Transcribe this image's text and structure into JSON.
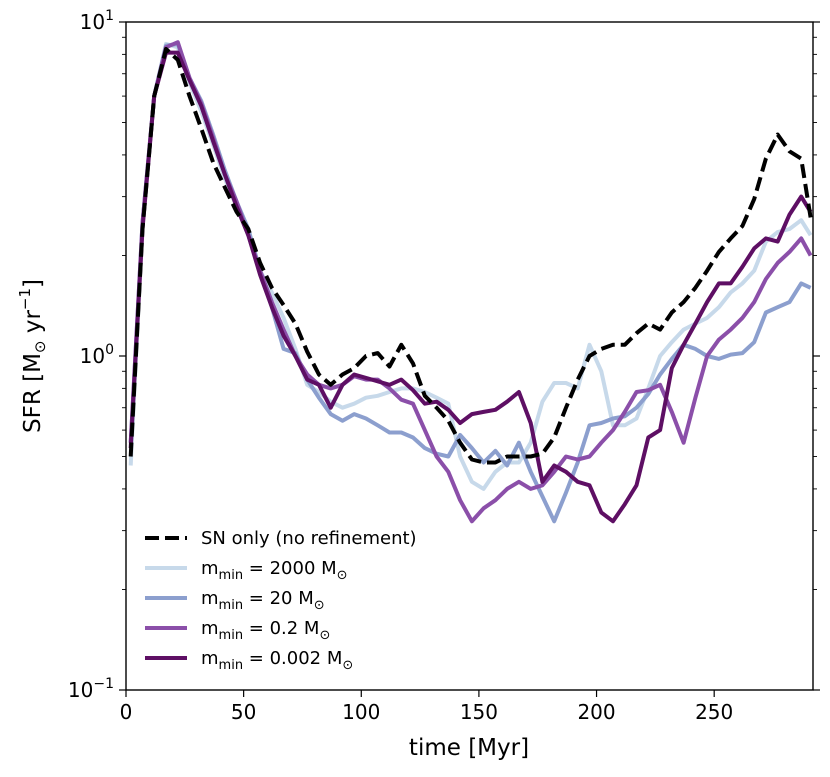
{
  "chart_data": {
    "type": "line",
    "title": "",
    "xlabel": "time [Myr]",
    "ylabel_main": "SFR [M",
    "ylabel_sub": "⊙",
    "ylabel_rest": " yr",
    "ylabel_sup": "−1",
    "ylabel_close": "]",
    "yscale": "log",
    "xlim": [
      0,
      292
    ],
    "ylim": [
      0.1,
      10
    ],
    "x_ticks": [
      0,
      50,
      100,
      150,
      200,
      250
    ],
    "x_tick_labels": [
      "0",
      "50",
      "100",
      "150",
      "200",
      "250"
    ],
    "y_tick_labels": [
      {
        "value": 10,
        "base": "10",
        "exp": "1"
      },
      {
        "value": 1,
        "base": "10",
        "exp": "0"
      },
      {
        "value": 0.1,
        "base": "10",
        "exp": "−1"
      }
    ],
    "legend_position": "lower-left",
    "series": [
      {
        "name": "SN only (no refinement)",
        "label_parts": {
          "main": "SN only (no refinement)",
          "sub": "",
          "rest": "",
          "sub2": ""
        },
        "color": "#000000",
        "dashed": true,
        "x": [
          2,
          7,
          12,
          17,
          22,
          27,
          32,
          37,
          42,
          47,
          52,
          57,
          62,
          67,
          72,
          77,
          82,
          87,
          92,
          97,
          102,
          107,
          112,
          117,
          122,
          127,
          132,
          137,
          142,
          147,
          152,
          157,
          162,
          167,
          172,
          177,
          182,
          187,
          192,
          197,
          202,
          207,
          212,
          217,
          222,
          227,
          232,
          237,
          242,
          247,
          252,
          257,
          262,
          267,
          272,
          277,
          282,
          287,
          291
        ],
        "y": [
          0.5,
          2.4,
          6.0,
          8.3,
          7.7,
          6.0,
          4.8,
          3.8,
          3.2,
          2.7,
          2.4,
          1.9,
          1.6,
          1.42,
          1.25,
          1.03,
          0.88,
          0.82,
          0.88,
          0.92,
          1.0,
          1.02,
          0.93,
          1.08,
          0.95,
          0.76,
          0.7,
          0.64,
          0.55,
          0.49,
          0.48,
          0.48,
          0.5,
          0.5,
          0.5,
          0.51,
          0.57,
          0.7,
          0.85,
          1.0,
          1.05,
          1.08,
          1.08,
          1.17,
          1.25,
          1.2,
          1.35,
          1.45,
          1.6,
          1.8,
          2.05,
          2.25,
          2.45,
          2.95,
          3.9,
          4.6,
          4.1,
          3.9,
          2.6
        ]
      },
      {
        "name": "m_min = 2000 M⊙",
        "label_parts": {
          "main": "m",
          "sub": "min",
          "rest": " = 2000 M",
          "sub2": "⊙"
        },
        "color": "#c7d9ea",
        "dashed": false,
        "x": [
          2,
          7,
          12,
          17,
          22,
          27,
          32,
          37,
          42,
          47,
          52,
          57,
          62,
          67,
          72,
          77,
          82,
          87,
          92,
          97,
          102,
          107,
          112,
          117,
          122,
          127,
          132,
          137,
          142,
          147,
          152,
          157,
          162,
          167,
          172,
          177,
          182,
          187,
          192,
          197,
          202,
          207,
          212,
          217,
          222,
          227,
          232,
          237,
          242,
          247,
          252,
          257,
          262,
          267,
          272,
          277,
          282,
          287,
          291
        ],
        "y": [
          0.47,
          2.5,
          6.0,
          8.6,
          8.4,
          6.6,
          5.4,
          4.3,
          3.4,
          2.8,
          2.3,
          1.8,
          1.55,
          1.3,
          1.05,
          0.82,
          0.78,
          0.73,
          0.7,
          0.72,
          0.75,
          0.76,
          0.78,
          0.8,
          0.8,
          0.78,
          0.75,
          0.72,
          0.5,
          0.42,
          0.4,
          0.45,
          0.48,
          0.48,
          0.55,
          0.73,
          0.83,
          0.83,
          0.8,
          1.08,
          0.9,
          0.62,
          0.62,
          0.65,
          0.8,
          1.0,
          1.1,
          1.2,
          1.25,
          1.3,
          1.4,
          1.55,
          1.65,
          1.8,
          2.2,
          2.35,
          2.4,
          2.55,
          2.3
        ]
      },
      {
        "name": "m_min = 20 M⊙",
        "label_parts": {
          "main": "m",
          "sub": "min",
          "rest": " = 20 M",
          "sub2": "⊙"
        },
        "color": "#8c9fce",
        "dashed": false,
        "x": [
          2,
          7,
          12,
          17,
          22,
          27,
          32,
          37,
          42,
          47,
          52,
          57,
          62,
          67,
          72,
          77,
          82,
          87,
          92,
          97,
          102,
          107,
          112,
          117,
          122,
          127,
          132,
          137,
          142,
          147,
          152,
          157,
          162,
          167,
          172,
          177,
          182,
          187,
          192,
          197,
          202,
          207,
          212,
          217,
          222,
          227,
          232,
          237,
          242,
          247,
          252,
          257,
          262,
          267,
          272,
          277,
          282,
          287,
          291
        ],
        "y": [
          0.55,
          2.5,
          6.0,
          8.5,
          8.6,
          6.8,
          5.8,
          4.6,
          3.6,
          2.9,
          2.4,
          1.8,
          1.4,
          1.05,
          1.02,
          0.85,
          0.75,
          0.67,
          0.64,
          0.67,
          0.65,
          0.62,
          0.59,
          0.59,
          0.57,
          0.53,
          0.51,
          0.5,
          0.58,
          0.53,
          0.48,
          0.52,
          0.47,
          0.55,
          0.45,
          0.38,
          0.32,
          0.39,
          0.48,
          0.62,
          0.63,
          0.65,
          0.66,
          0.7,
          0.77,
          0.88,
          0.98,
          1.08,
          1.05,
          1.0,
          0.98,
          1.01,
          1.02,
          1.1,
          1.35,
          1.4,
          1.45,
          1.65,
          1.6
        ]
      },
      {
        "name": "m_min = 0.2 M⊙",
        "label_parts": {
          "main": "m",
          "sub": "min",
          "rest": " = 0.2 M",
          "sub2": "⊙"
        },
        "color": "#8b4fa9",
        "dashed": false,
        "x": [
          2,
          7,
          12,
          17,
          22,
          27,
          32,
          37,
          42,
          47,
          52,
          57,
          62,
          67,
          72,
          77,
          82,
          87,
          92,
          97,
          102,
          107,
          112,
          117,
          122,
          127,
          132,
          137,
          142,
          147,
          152,
          157,
          162,
          167,
          172,
          177,
          182,
          187,
          192,
          197,
          202,
          207,
          212,
          217,
          222,
          227,
          232,
          237,
          242,
          247,
          252,
          257,
          262,
          267,
          272,
          277,
          282,
          287,
          291
        ],
        "y": [
          0.55,
          2.5,
          6.0,
          8.4,
          8.7,
          6.8,
          5.7,
          4.5,
          3.5,
          2.9,
          2.3,
          1.8,
          1.45,
          1.2,
          1.0,
          0.88,
          0.82,
          0.8,
          0.82,
          0.87,
          0.85,
          0.85,
          0.8,
          0.74,
          0.72,
          0.6,
          0.5,
          0.45,
          0.37,
          0.32,
          0.35,
          0.37,
          0.4,
          0.42,
          0.4,
          0.41,
          0.45,
          0.5,
          0.49,
          0.5,
          0.55,
          0.6,
          0.68,
          0.78,
          0.79,
          0.82,
          0.68,
          0.55,
          0.75,
          1.0,
          1.12,
          1.2,
          1.3,
          1.45,
          1.7,
          1.9,
          2.05,
          2.25,
          2.0
        ]
      },
      {
        "name": "m_min = 0.002 M⊙",
        "label_parts": {
          "main": "m",
          "sub": "min",
          "rest": " = 0.002 M",
          "sub2": "⊙"
        },
        "color": "#5e0f64",
        "dashed": false,
        "x": [
          2,
          7,
          12,
          17,
          22,
          27,
          32,
          37,
          42,
          47,
          52,
          57,
          62,
          67,
          72,
          77,
          82,
          87,
          92,
          97,
          102,
          107,
          112,
          117,
          122,
          127,
          132,
          137,
          142,
          147,
          152,
          157,
          162,
          167,
          172,
          177,
          182,
          187,
          192,
          197,
          202,
          207,
          212,
          217,
          222,
          227,
          232,
          237,
          242,
          247,
          252,
          257,
          262,
          267,
          272,
          277,
          282,
          287,
          291
        ],
        "y": [
          0.53,
          2.4,
          6.0,
          8.1,
          8.1,
          6.7,
          5.6,
          4.4,
          3.5,
          2.8,
          2.3,
          1.75,
          1.4,
          1.15,
          1.0,
          0.85,
          0.82,
          0.7,
          0.82,
          0.88,
          0.86,
          0.84,
          0.82,
          0.85,
          0.79,
          0.72,
          0.73,
          0.69,
          0.63,
          0.67,
          0.68,
          0.69,
          0.73,
          0.78,
          0.63,
          0.42,
          0.47,
          0.45,
          0.42,
          0.41,
          0.34,
          0.32,
          0.36,
          0.41,
          0.57,
          0.6,
          0.92,
          1.08,
          1.25,
          1.45,
          1.65,
          1.65,
          1.85,
          2.1,
          2.25,
          2.2,
          2.65,
          3.0,
          2.7
        ]
      }
    ]
  }
}
